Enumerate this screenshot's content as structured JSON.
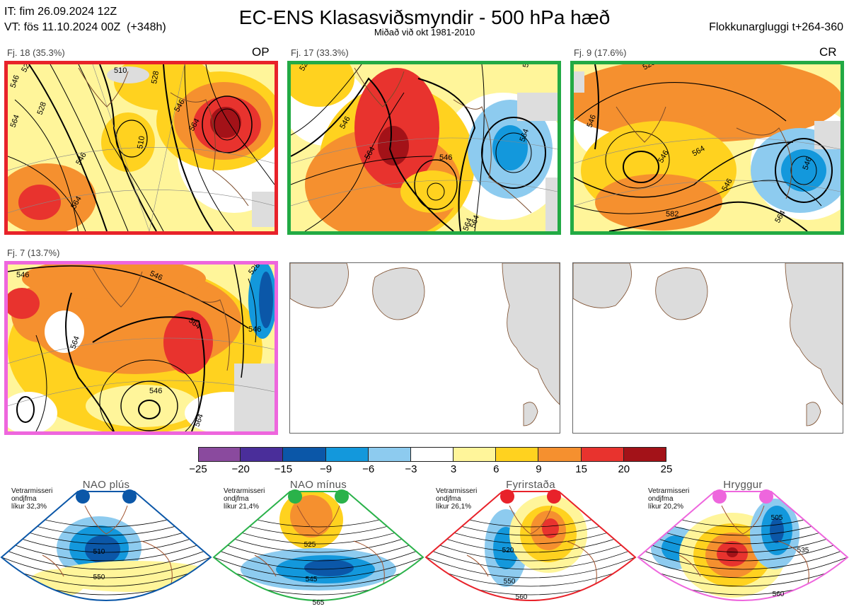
{
  "header": {
    "it_line": "IT: fim 26.09.2024 12Z",
    "vt_line": "VT: fös 11.10.2024 00Z  (+348h)",
    "title": "EC-ENS Klasasviðsmyndir - 500 hPa hæð",
    "subtitle": "Miðað við okt 1981-2010",
    "window": "Flokkunargluggi t+264-360"
  },
  "panels": [
    {
      "label": "Fj. 18 (35.3%)",
      "tag": "OP",
      "border_color": "#e8222a"
    },
    {
      "label": "Fj. 17 (33.3%)",
      "tag": "",
      "border_color": "#22aa44"
    },
    {
      "label": "Fj. 9 (17.6%)",
      "tag": "CR",
      "border_color": "#22aa44"
    },
    {
      "label": "Fj. 7 (13.7%)",
      "tag": "",
      "border_color": "#ee66dd"
    }
  ],
  "contour_labels": {
    "p1": [
      "528",
      "510",
      "546",
      "528",
      "564",
      "546",
      "564",
      "510",
      "528",
      "564",
      "546"
    ],
    "p2": [
      "528",
      "546",
      "564",
      "546",
      "564",
      "546",
      "564",
      "564"
    ],
    "p3": [
      "528",
      "546",
      "546",
      "564",
      "546",
      "582",
      "564",
      "546"
    ],
    "p4": [
      "546",
      "546",
      "564",
      "546",
      "546",
      "564",
      "564",
      "528"
    ]
  },
  "colorbar": {
    "ticks": [
      "−25",
      "−20",
      "−15",
      "−9",
      "−6",
      "−3",
      "3",
      "6",
      "9",
      "15",
      "20",
      "25"
    ],
    "colors": [
      "#8a4a9e",
      "#4a2e9a",
      "#0b57a8",
      "#1398dc",
      "#8dcbef",
      "#ffffff",
      "#fff59a",
      "#ffd21f",
      "#f5902f",
      "#e8332e",
      "#a31218"
    ]
  },
  "regimes": [
    {
      "title": "NAO plús",
      "note": "Vetrarmisseri\nondjfma\nlíkur 32,3%",
      "color": "#0b57a8",
      "labels": [
        "510",
        "550"
      ]
    },
    {
      "title": "NAO mínus",
      "note": "Vetrarmisseri\nondjfma\nlíkur 21,4%",
      "color": "#2ab24a",
      "labels": [
        "525",
        "545",
        "565"
      ]
    },
    {
      "title": "Fyrirstaða",
      "note": "Vetrarmisseri\nondjfma\nlíkur 26,1%",
      "color": "#e8222a",
      "labels": [
        "520",
        "550",
        "560"
      ]
    },
    {
      "title": "Hryggur",
      "note": "Vetrarmisseri\nondjfma\nlíkur 20,2%",
      "color": "#ee66dd",
      "labels": [
        "505",
        "535",
        "560"
      ]
    }
  ]
}
